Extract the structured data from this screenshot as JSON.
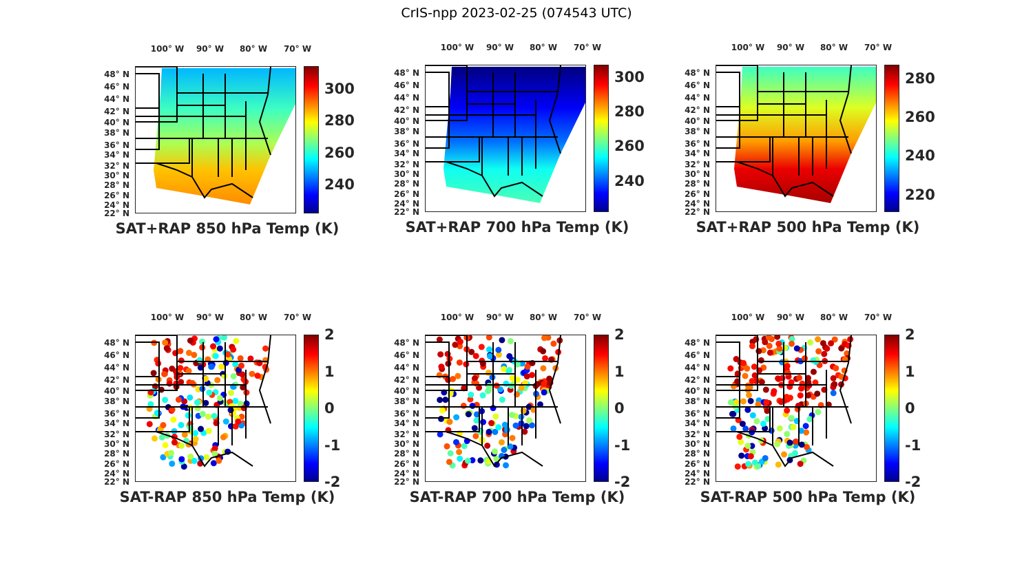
{
  "title": "CrIS-npp 2023-02-25 (074543 UTC)",
  "lon_labels": [
    "100° W",
    "90° W",
    "80° W",
    "70° W"
  ],
  "lat_labels": [
    "48° N",
    "46° N",
    "44° N",
    "42° N",
    "40° N",
    "38° N",
    "36° N",
    "34° N",
    "32° N",
    "30° N",
    "28° N",
    "26° N",
    "24° N",
    "22° N"
  ],
  "colormap": "jet",
  "panels": [
    {
      "title": "SAT+RAP 850 hPa Temp (K)",
      "kind": "field",
      "clim": [
        222,
        314
      ],
      "ticks": [
        "240",
        "260",
        "280",
        "300"
      ],
      "tick_values": [
        240,
        260,
        280,
        300
      ]
    },
    {
      "title": "SAT+RAP 700 hPa Temp (K)",
      "kind": "field",
      "clim": [
        222,
        307
      ],
      "ticks": [
        "240",
        "260",
        "280",
        "300"
      ],
      "tick_values": [
        240,
        260,
        280,
        300
      ]
    },
    {
      "title": "SAT+RAP 500 hPa Temp (K)",
      "kind": "field",
      "clim": [
        211,
        287
      ],
      "ticks": [
        "220",
        "240",
        "260",
        "280"
      ],
      "tick_values": [
        220,
        240,
        260,
        280
      ]
    },
    {
      "title": "SAT-RAP 850 hPa Temp (K)",
      "kind": "diff",
      "clim": [
        -2,
        2
      ],
      "ticks": [
        "-2",
        "-1",
        "0",
        "1",
        "2"
      ],
      "tick_values": [
        -2,
        -1,
        0,
        1,
        2
      ]
    },
    {
      "title": "SAT-RAP 700 hPa Temp (K)",
      "kind": "diff",
      "clim": [
        -2,
        2
      ],
      "ticks": [
        "-2",
        "-1",
        "0",
        "1",
        "2"
      ],
      "tick_values": [
        -2,
        -1,
        0,
        1,
        2
      ]
    },
    {
      "title": "SAT-RAP 500 hPa Temp (K)",
      "kind": "diff",
      "clim": [
        -2,
        2
      ],
      "ticks": [
        "-2",
        "-1",
        "0",
        "1",
        "2"
      ],
      "tick_values": [
        -2,
        -1,
        0,
        1,
        2
      ]
    }
  ]
}
